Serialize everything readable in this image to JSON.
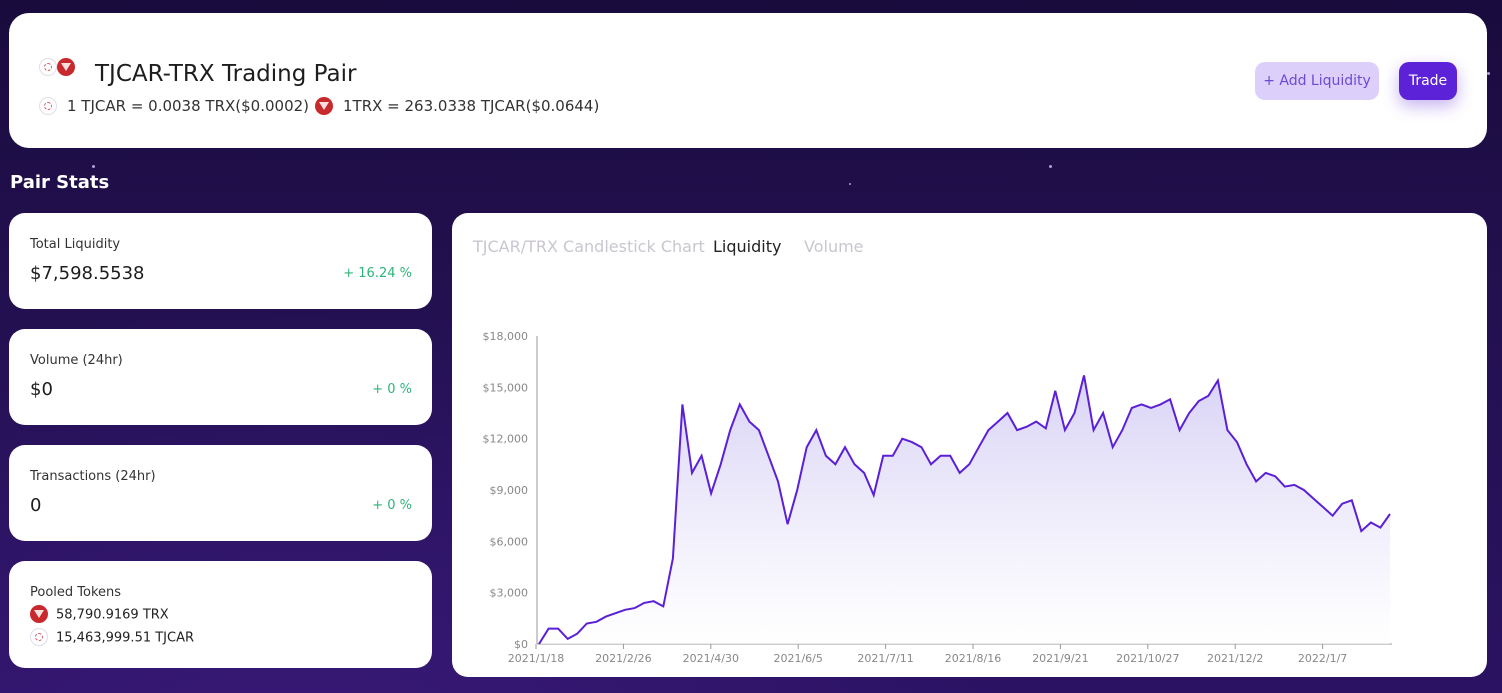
{
  "header": {
    "title": "TJCAR-TRX Trading Pair",
    "rate_tjcar": "1 TJCAR = 0.0038 TRX($0.0002)",
    "rate_trx": "1TRX = 263.0338 TJCAR($0.0644)",
    "add_liquidity_label": "+ Add Liquidity",
    "trade_label": "Trade"
  },
  "section_title": "Pair Stats",
  "stats": {
    "total_liquidity": {
      "label": "Total Liquidity",
      "value": "$7,598.5538",
      "change": "+ 16.24 %"
    },
    "volume": {
      "label": "Volume (24hr)",
      "value": "$0",
      "change": "+ 0 %"
    },
    "transactions": {
      "label": "Transactions (24hr)",
      "value": "0",
      "change": "+ 0 %"
    },
    "pooled": {
      "label": "Pooled Tokens",
      "trx": "58,790.9169 TRX",
      "tjcar": "15,463,999.51 TJCAR"
    }
  },
  "tabs": [
    {
      "label": "TJCAR/TRX Candlestick Chart",
      "active": false
    },
    {
      "label": "Liquidity",
      "active": true
    },
    {
      "label": "Volume",
      "active": false
    }
  ],
  "colors": {
    "accent": "#5b22d8",
    "positive": "#2fb37a",
    "line": "#5a1fd6"
  },
  "chart_data": {
    "type": "area",
    "title": "",
    "xlabel": "",
    "ylabel": "",
    "ylim": [
      0,
      18000
    ],
    "y_ticks": [
      "$0",
      "$3,000",
      "$6,000",
      "$9,000",
      "$12,000",
      "$15,000",
      "$18,000"
    ],
    "x_ticks": [
      "2021/1/18",
      "2021/2/26",
      "2021/4/30",
      "2021/6/5",
      "2021/7/11",
      "2021/8/16",
      "2021/9/21",
      "2021/10/27",
      "2021/12/2",
      "2022/1/7"
    ],
    "grid": false,
    "series": [
      {
        "values": [
          0,
          900,
          900,
          300,
          600,
          1200,
          1300,
          1600,
          1800,
          2000,
          2100,
          2400,
          2500,
          2200,
          5000,
          14000,
          10000,
          11000,
          8800,
          10500,
          12500,
          14000,
          13000,
          12500,
          11000,
          9500,
          7000,
          9000,
          11500,
          12500,
          11000,
          10500,
          11500,
          10500,
          10000,
          8700,
          11000,
          11000,
          12000,
          11800,
          11500,
          10500,
          11000,
          11000,
          10000,
          10500,
          11500,
          12500,
          13000,
          13500,
          12500,
          12700,
          13000,
          12600,
          14800,
          12500,
          13500,
          15700,
          12500,
          13500,
          11500,
          12500,
          13800,
          14000,
          13800,
          14000,
          14300,
          12500,
          13500,
          14200,
          14500,
          15400,
          12500,
          11800,
          10500,
          9500,
          10000,
          9800,
          9200,
          9300,
          9000,
          8500,
          8000,
          7500,
          8200,
          8400,
          6600,
          7100,
          6800,
          7600
        ]
      }
    ]
  }
}
